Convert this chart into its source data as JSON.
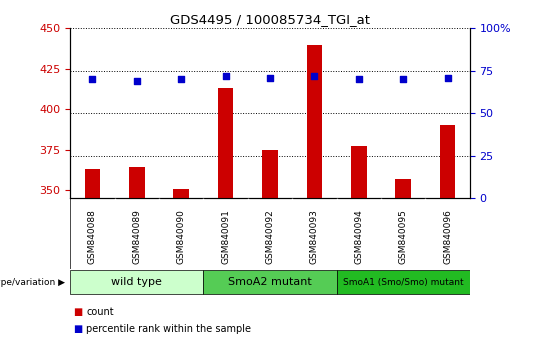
{
  "title": "GDS4495 / 100085734_TGI_at",
  "samples": [
    "GSM840088",
    "GSM840089",
    "GSM840090",
    "GSM840091",
    "GSM840092",
    "GSM840093",
    "GSM840094",
    "GSM840095",
    "GSM840096"
  ],
  "counts": [
    363,
    364,
    351,
    413,
    375,
    440,
    377,
    357,
    390
  ],
  "percentiles": [
    70,
    69,
    70,
    72,
    71,
    72,
    70,
    70,
    71
  ],
  "ylim_left": [
    345,
    450
  ],
  "ylim_right": [
    0,
    100
  ],
  "yticks_left": [
    350,
    375,
    400,
    425,
    450
  ],
  "yticks_right": [
    0,
    25,
    50,
    75,
    100
  ],
  "groups": [
    {
      "label": "wild type",
      "start": 0,
      "end": 3,
      "color": "#ccffcc"
    },
    {
      "label": "SmoA2 mutant",
      "start": 3,
      "end": 6,
      "color": "#55cc55"
    },
    {
      "label": "SmoA1 (Smo/Smo) mutant",
      "start": 6,
      "end": 9,
      "color": "#22bb22"
    }
  ],
  "bar_color": "#cc0000",
  "dot_color": "#0000cc",
  "bar_width": 0.35,
  "tick_bg_color": "#cccccc",
  "background_color": "#ffffff",
  "x_label_rotation": 90,
  "legend_items": [
    {
      "label": "count",
      "color": "#cc0000",
      "marker": "s"
    },
    {
      "label": "percentile rank within the sample",
      "color": "#0000cc",
      "marker": "s"
    }
  ],
  "genotype_label": "genotype/variation"
}
